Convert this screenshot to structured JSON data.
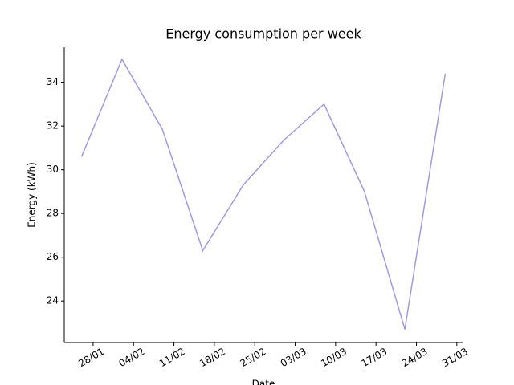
{
  "chart_data": {
    "type": "line",
    "title": "Energy consumption per week",
    "x_label": "Date",
    "y_label": "Energy (kWh)",
    "x": [
      "26/01",
      "02/02",
      "09/02",
      "16/02",
      "23/02",
      "01/03",
      "08/03",
      "15/03",
      "22/03",
      "29/03"
    ],
    "series": [
      {
        "name": "Energy",
        "color": "#a29ae0",
        "values": [
          30.6,
          35.05,
          31.85,
          26.3,
          29.3,
          31.35,
          33.0,
          29.0,
          22.7,
          34.4
        ]
      }
    ],
    "xlim": [
      "23/01",
      "01/04"
    ],
    "xticks": [
      "28/01",
      "04/02",
      "11/02",
      "18/02",
      "25/02",
      "03/03",
      "10/03",
      "17/03",
      "24/03",
      "31/03"
    ],
    "ylim": [
      22.1,
      35.6
    ],
    "yticks": [
      24,
      26,
      28,
      30,
      32,
      34
    ]
  }
}
